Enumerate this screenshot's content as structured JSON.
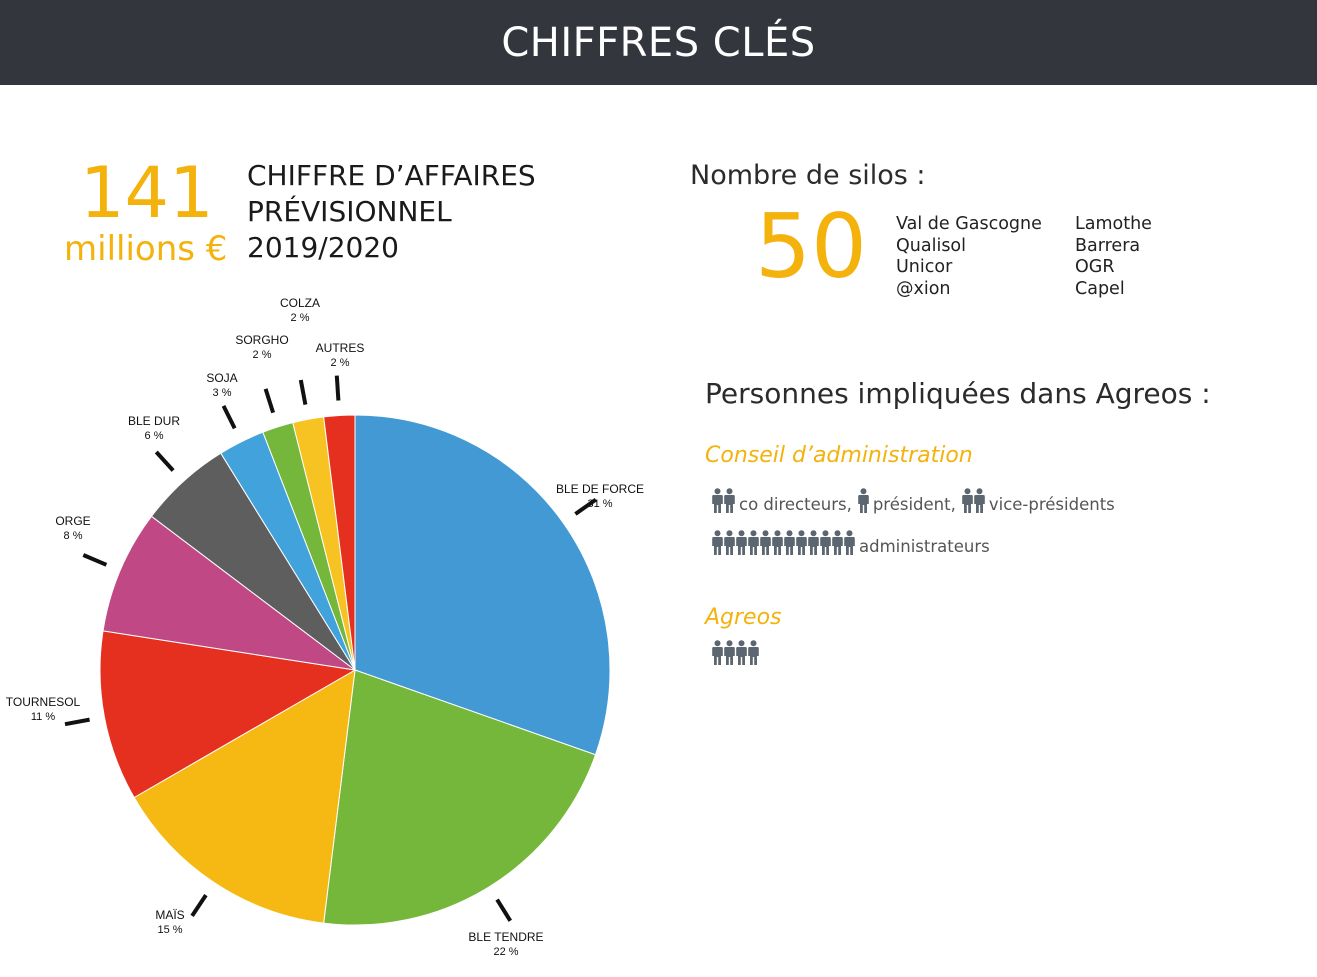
{
  "header": {
    "title": "CHIFFRES CLÉS"
  },
  "revenue": {
    "amount": "141",
    "unit": "millions €",
    "title_lines": [
      "CHIFFRE D’AFFAIRES",
      "PRÉVISIONNEL",
      "2019/2020"
    ]
  },
  "silos": {
    "title": "Nombre de silos :",
    "count": "50",
    "col1": [
      "Val de Gascogne",
      "Qualisol",
      "Unicor",
      "@xion"
    ],
    "col2": [
      "Lamothe",
      "Barrera",
      "OGR",
      "Capel"
    ]
  },
  "persons": {
    "title": "Personnes impliquées dans Agreos :",
    "board": {
      "title": "Conseil d’administration",
      "roles_line1": [
        {
          "count": 2,
          "label": "co directeurs,"
        },
        {
          "count": 1,
          "label": "président,"
        },
        {
          "count": 2,
          "label": "vice-présidents"
        }
      ],
      "roles_line2": [
        {
          "count": 12,
          "label": "administrateurs"
        }
      ]
    },
    "agreos": {
      "title": "Agreos",
      "count": 4
    }
  },
  "colors": {
    "accent": "#f3b20c",
    "header_bg": "#33363d",
    "person_icon": "#5c6670"
  },
  "icons": {
    "person": "person-icon"
  },
  "chart_data": {
    "type": "pie",
    "start_angle_deg": 0,
    "direction": "clockwise",
    "slices": [
      {
        "label": "BLE DE FORCE",
        "pct_label": "31 %",
        "value": 31,
        "color": "#4399d4"
      },
      {
        "label": "BLE TENDRE",
        "pct_label": "22 %",
        "value": 22,
        "color": "#74b73b"
      },
      {
        "label": "MAÏS",
        "pct_label": "15 %",
        "value": 15,
        "color": "#f6b913"
      },
      {
        "label": "TOURNESOL",
        "pct_label": "11 %",
        "value": 11,
        "color": "#e5301f"
      },
      {
        "label": "ORGE",
        "pct_label": "8 %",
        "value": 8,
        "color": "#c04885"
      },
      {
        "label": "BLE DUR",
        "pct_label": "6 %",
        "value": 6,
        "color": "#5e5e5e"
      },
      {
        "label": "SOJA",
        "pct_label": "3 %",
        "value": 3,
        "color": "#41a2dc"
      },
      {
        "label": "SORGHO",
        "pct_label": "2 %",
        "value": 2,
        "color": "#74b73b"
      },
      {
        "label": "COLZA",
        "pct_label": "2 %",
        "value": 2,
        "color": "#f6c323"
      },
      {
        "label": "AUTRES",
        "pct_label": "2 %",
        "value": 2,
        "color": "#e5301f"
      }
    ]
  }
}
